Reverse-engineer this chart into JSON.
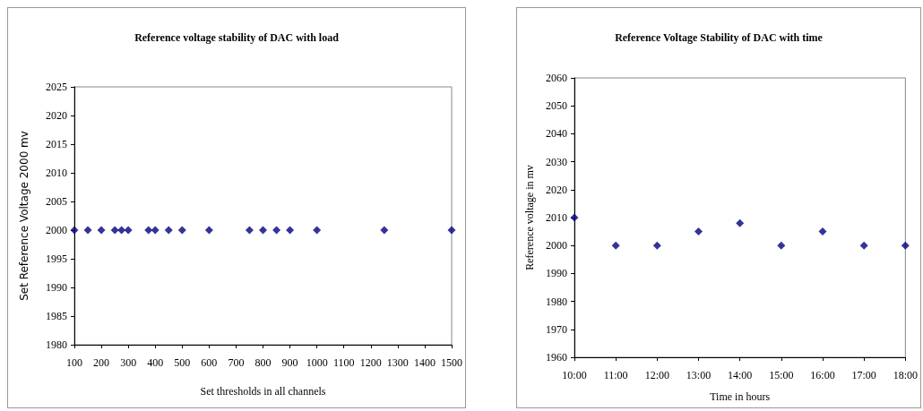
{
  "chart_data": [
    {
      "type": "scatter",
      "title": "Reference voltage stability of DAC with load",
      "xlabel": "Set thresholds in all channels",
      "ylabel": "Set Reference Voltage 2000 mv",
      "x": [
        100,
        150,
        200,
        250,
        275,
        300,
        375,
        400,
        450,
        500,
        600,
        750,
        800,
        850,
        900,
        1000,
        1250,
        1500
      ],
      "series": [
        {
          "color": "#000080",
          "values": [
            2000,
            2000,
            2000,
            2000,
            2000,
            2000,
            2000,
            2000,
            2000,
            2000,
            2000,
            2000,
            2000,
            2000,
            2000,
            2000,
            2000,
            2000
          ]
        }
      ],
      "xlim": [
        100,
        1500
      ],
      "xticks": [
        100,
        200,
        300,
        400,
        500,
        600,
        700,
        800,
        900,
        1000,
        1100,
        1200,
        1300,
        1400,
        1500
      ],
      "ylim": [
        1980,
        2025
      ],
      "yticks": [
        1980,
        1985,
        1990,
        1995,
        2000,
        2005,
        2010,
        2015,
        2020,
        2025
      ],
      "marker": "diamond",
      "grid": false
    },
    {
      "type": "scatter",
      "title": "Reference Voltage Stability of DAC with time",
      "xlabel": "Time in hours",
      "ylabel": "Reference voltage in mv",
      "x": [
        10,
        11,
        12,
        13,
        14,
        15,
        16,
        17,
        18
      ],
      "series": [
        {
          "color": "#000080",
          "values": [
            2010,
            2000,
            2000,
            2005,
            2008,
            2000,
            2005,
            2000,
            2000
          ]
        }
      ],
      "xlim": [
        10,
        18
      ],
      "xticks": [
        {
          "value": 10,
          "label": "10:00"
        },
        {
          "value": 11,
          "label": "11:00"
        },
        {
          "value": 12,
          "label": "12:00"
        },
        {
          "value": 13,
          "label": "13:00"
        },
        {
          "value": 14,
          "label": "14:00"
        },
        {
          "value": 15,
          "label": "15:00"
        },
        {
          "value": 16,
          "label": "16:00"
        },
        {
          "value": 17,
          "label": "17:00"
        },
        {
          "value": 18,
          "label": "18:00"
        }
      ],
      "ylim": [
        1960,
        2060
      ],
      "yticks": [
        1960,
        1970,
        1980,
        1990,
        2000,
        2010,
        2020,
        2030,
        2040,
        2050,
        2060
      ],
      "marker": "diamond",
      "grid": false
    }
  ]
}
